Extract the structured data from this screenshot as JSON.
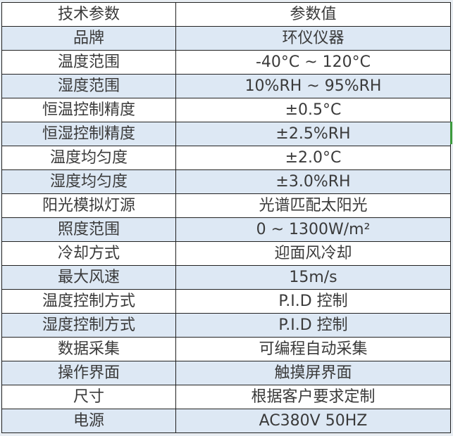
{
  "header": {
    "param": "技术参数",
    "value": "参数值"
  },
  "rows": [
    {
      "param": "品牌",
      "value": "环仪仪器"
    },
    {
      "param": "温度范围",
      "value": "-40°C ~ 120°C"
    },
    {
      "param": "湿度范围",
      "value": "10%RH ~ 95%RH"
    },
    {
      "param": "恒温控制精度",
      "value": "±0.5°C"
    },
    {
      "param": "恒湿控制精度",
      "value": "±2.5%RH"
    },
    {
      "param": "温度均匀度",
      "value": "±2.0°C"
    },
    {
      "param": "湿度均匀度",
      "value": "±3.0%RH"
    },
    {
      "param": "阳光模拟灯源",
      "value": "光谱匹配太阳光"
    },
    {
      "param": "照度范围",
      "value": "0 ~ 1300W/m²"
    },
    {
      "param": "冷却方式",
      "value": "迎面风冷却"
    },
    {
      "param": "最大风速",
      "value": "15m/s"
    },
    {
      "param": "温度控制方式",
      "value": "P.I.D 控制"
    },
    {
      "param": "湿度控制方式",
      "value": "P.I.D 控制"
    },
    {
      "param": "数据采集",
      "value": "可编程自动采集"
    },
    {
      "param": "操作界面",
      "value": "触摸屏界面"
    },
    {
      "param": "尺寸",
      "value": "根据客户要求定制"
    },
    {
      "param": "电源",
      "value": "AC380V 50HZ"
    }
  ],
  "colors": {
    "alt_row": "#dde8f4",
    "border": "#222222",
    "text": "#3a3a3a",
    "selection_marker": "#3c9a3c"
  }
}
